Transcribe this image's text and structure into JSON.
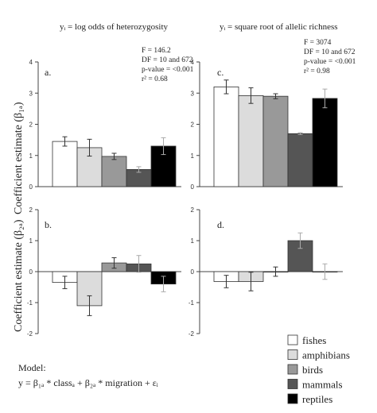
{
  "titles": {
    "left": "yᵢ = log odds of heterozygosity",
    "right": "yᵢ = square root of allelic richness"
  },
  "ylabels": {
    "top": "Coefficient estimate (β₁ₐ)",
    "bottom": "Coefficient estimate (β₂ₐ)"
  },
  "stats_left": [
    "F = 146.2",
    "DF = 10 and 672",
    "p-value = <0.001",
    "r² = 0.68"
  ],
  "stats_right": [
    "F = 3074",
    "DF = 10 and 672",
    "p-value = <0.001",
    "r² = 0.98"
  ],
  "model": {
    "line1": "Model:",
    "line2": "y = β₁ₐ * classₐ + β₂ₐ * migration + εᵢ"
  },
  "legend": [
    {
      "label": "fishes",
      "color": "#ffffff"
    },
    {
      "label": "amphibians",
      "color": "#dcdcdc"
    },
    {
      "label": "birds",
      "color": "#999999"
    },
    {
      "label": "mammals",
      "color": "#555555"
    },
    {
      "label": "reptiles",
      "color": "#000000"
    }
  ],
  "chart_data": [
    {
      "panel": "a.",
      "type": "bar",
      "categories": [
        "fishes",
        "amphibians",
        "birds",
        "mammals",
        "reptiles"
      ],
      "values": [
        1.45,
        1.25,
        0.97,
        0.55,
        1.3
      ],
      "errors": [
        0.15,
        0.27,
        0.1,
        0.09,
        0.27
      ],
      "ylim": [
        0,
        4
      ],
      "yticks": [
        0,
        1,
        2,
        3,
        4
      ]
    },
    {
      "panel": "c.",
      "type": "bar",
      "categories": [
        "fishes",
        "amphibians",
        "birds",
        "mammals",
        "reptiles"
      ],
      "values": [
        3.2,
        2.92,
        2.9,
        1.7,
        2.83
      ],
      "errors": [
        0.22,
        0.25,
        0.08,
        0.03,
        0.3
      ],
      "ylim": [
        0,
        4
      ],
      "yticks": [
        0,
        1,
        2,
        3,
        4
      ]
    },
    {
      "panel": "b.",
      "type": "bar",
      "categories": [
        "fishes",
        "amphibians",
        "birds",
        "mammals",
        "reptiles"
      ],
      "values": [
        -0.35,
        -1.1,
        0.28,
        0.25,
        -0.4
      ],
      "errors": [
        0.2,
        0.32,
        0.17,
        0.27,
        0.25
      ],
      "ylim": [
        -2,
        2
      ],
      "yticks": [
        -2,
        -1,
        0,
        1,
        2
      ]
    },
    {
      "panel": "d.",
      "type": "bar",
      "categories": [
        "fishes",
        "amphibians",
        "birds",
        "mammals",
        "reptiles"
      ],
      "values": [
        -0.32,
        -0.32,
        0.0,
        1.0,
        0.0
      ],
      "errors": [
        0.2,
        0.3,
        0.15,
        0.25,
        0.25
      ],
      "ylim": [
        -2,
        2
      ],
      "yticks": [
        -2,
        -1,
        0,
        1,
        2
      ]
    }
  ]
}
